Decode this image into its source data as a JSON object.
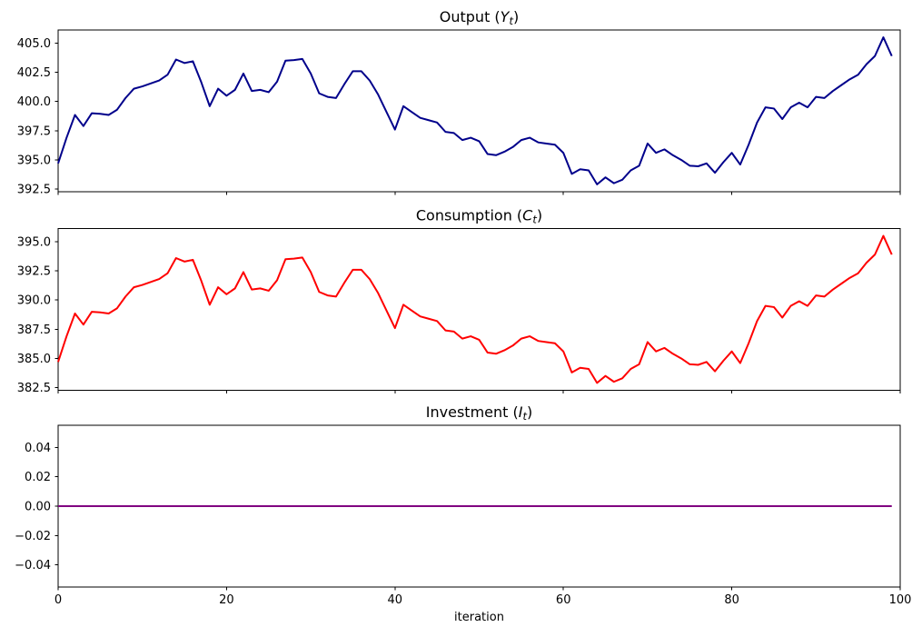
{
  "figure": {
    "background": "#ffffff",
    "xlabel": "iteration",
    "xlim": [
      0,
      100
    ],
    "xtick_values": [
      0,
      20,
      40,
      60,
      80,
      100
    ],
    "xtick_labels": [
      "0",
      "20",
      "40",
      "60",
      "80",
      "100"
    ]
  },
  "chart_data": [
    {
      "id": "output",
      "type": "line",
      "title_prefix": "Output (",
      "title_var": "Y",
      "title_sub": "t",
      "title_suffix": ")",
      "color": "#00008B",
      "legend": "none",
      "grid": false,
      "xlabel": "",
      "ylabel": "",
      "ylim": [
        392.27,
        406.13
      ],
      "ytick_values": [
        392.5,
        395.0,
        397.5,
        400.0,
        402.5,
        405.0
      ],
      "ytick_labels": [
        "392.5",
        "395.0",
        "397.5",
        "400.0",
        "402.5",
        "405.0"
      ],
      "show_xtick_labels": false,
      "x_start": 0,
      "values": [
        394.7,
        396.9,
        398.85,
        397.9,
        399.0,
        398.95,
        398.85,
        399.3,
        400.3,
        401.1,
        401.3,
        401.55,
        401.8,
        402.3,
        403.6,
        403.3,
        403.45,
        401.65,
        399.6,
        401.1,
        400.5,
        401.0,
        402.4,
        400.9,
        401.0,
        400.8,
        401.7,
        403.5,
        403.55,
        403.65,
        402.4,
        400.7,
        400.4,
        400.3,
        401.5,
        402.6,
        402.6,
        401.8,
        400.6,
        399.1,
        397.6,
        399.6,
        399.1,
        398.6,
        398.4,
        398.2,
        397.4,
        397.3,
        396.7,
        396.9,
        396.6,
        395.5,
        395.4,
        395.7,
        396.1,
        396.7,
        396.9,
        396.5,
        396.4,
        396.3,
        395.6,
        393.8,
        394.2,
        394.1,
        392.9,
        393.5,
        393.0,
        393.3,
        394.1,
        394.5,
        396.4,
        395.6,
        395.9,
        395.4,
        395.0,
        394.5,
        394.45,
        394.7,
        393.9,
        394.8,
        395.6,
        394.6,
        396.3,
        398.2,
        399.5,
        399.4,
        398.5,
        399.5,
        399.9,
        399.5,
        400.4,
        400.3,
        400.9,
        401.4,
        401.9,
        402.3,
        403.2,
        403.9,
        405.5,
        403.9
      ]
    },
    {
      "id": "consumption",
      "type": "line",
      "title_prefix": "Consumption (",
      "title_var": "C",
      "title_sub": "t",
      "title_suffix": ")",
      "color": "#FF0000",
      "legend": "none",
      "grid": false,
      "xlabel": "",
      "ylabel": "",
      "ylim": [
        382.27,
        396.13
      ],
      "ytick_values": [
        382.5,
        385.0,
        387.5,
        390.0,
        392.5,
        395.0
      ],
      "ytick_labels": [
        "382.5",
        "385.0",
        "387.5",
        "390.0",
        "392.5",
        "395.0"
      ],
      "show_xtick_labels": false,
      "x_start": 0,
      "values": [
        384.7,
        386.9,
        388.85,
        387.9,
        389.0,
        388.95,
        388.85,
        389.3,
        390.3,
        391.1,
        391.3,
        391.55,
        391.8,
        392.3,
        393.6,
        393.3,
        393.45,
        391.65,
        389.6,
        391.1,
        390.5,
        391.0,
        392.4,
        390.9,
        391.0,
        390.8,
        391.7,
        393.5,
        393.55,
        393.65,
        392.4,
        390.7,
        390.4,
        390.3,
        391.5,
        392.6,
        392.6,
        391.8,
        390.6,
        389.1,
        387.6,
        389.6,
        389.1,
        388.6,
        388.4,
        388.2,
        387.4,
        387.3,
        386.7,
        386.9,
        386.6,
        385.5,
        385.4,
        385.7,
        386.1,
        386.7,
        386.9,
        386.5,
        386.4,
        386.3,
        385.6,
        383.8,
        384.2,
        384.1,
        382.9,
        383.5,
        383.0,
        383.3,
        384.1,
        384.5,
        386.4,
        385.6,
        385.9,
        385.4,
        385.0,
        384.5,
        384.45,
        384.7,
        383.9,
        384.8,
        385.6,
        384.6,
        386.3,
        388.2,
        389.5,
        389.4,
        388.5,
        389.5,
        389.9,
        389.5,
        390.4,
        390.3,
        390.9,
        391.4,
        391.9,
        392.3,
        393.2,
        393.9,
        395.5,
        393.9
      ]
    },
    {
      "id": "investment",
      "type": "line",
      "title_prefix": "Investment (",
      "title_var": "I",
      "title_sub": "t",
      "title_suffix": ")",
      "color": "#800080",
      "legend": "none",
      "grid": false,
      "xlabel": "iteration",
      "ylabel": "",
      "ylim": [
        -0.055,
        0.055
      ],
      "ytick_values": [
        -0.04,
        -0.02,
        0.0,
        0.02,
        0.04
      ],
      "ytick_labels": [
        "−0.04",
        "−0.02",
        "0.00",
        "0.02",
        "0.04"
      ],
      "show_xtick_labels": true,
      "x_start": 0,
      "values": [
        0.0,
        0.0,
        0.0,
        0.0,
        0.0,
        0.0,
        0.0,
        0.0,
        0.0,
        0.0,
        0.0,
        0.0,
        0.0,
        0.0,
        0.0,
        0.0,
        0.0,
        0.0,
        0.0,
        0.0,
        0.0,
        0.0,
        0.0,
        0.0,
        0.0,
        0.0,
        0.0,
        0.0,
        0.0,
        0.0,
        0.0,
        0.0,
        0.0,
        0.0,
        0.0,
        0.0,
        0.0,
        0.0,
        0.0,
        0.0,
        0.0,
        0.0,
        0.0,
        0.0,
        0.0,
        0.0,
        0.0,
        0.0,
        0.0,
        0.0,
        0.0,
        0.0,
        0.0,
        0.0,
        0.0,
        0.0,
        0.0,
        0.0,
        0.0,
        0.0,
        0.0,
        0.0,
        0.0,
        0.0,
        0.0,
        0.0,
        0.0,
        0.0,
        0.0,
        0.0,
        0.0,
        0.0,
        0.0,
        0.0,
        0.0,
        0.0,
        0.0,
        0.0,
        0.0,
        0.0,
        0.0,
        0.0,
        0.0,
        0.0,
        0.0,
        0.0,
        0.0,
        0.0,
        0.0,
        0.0,
        0.0,
        0.0,
        0.0,
        0.0,
        0.0,
        0.0,
        0.0,
        0.0,
        0.0,
        0.0
      ]
    }
  ]
}
